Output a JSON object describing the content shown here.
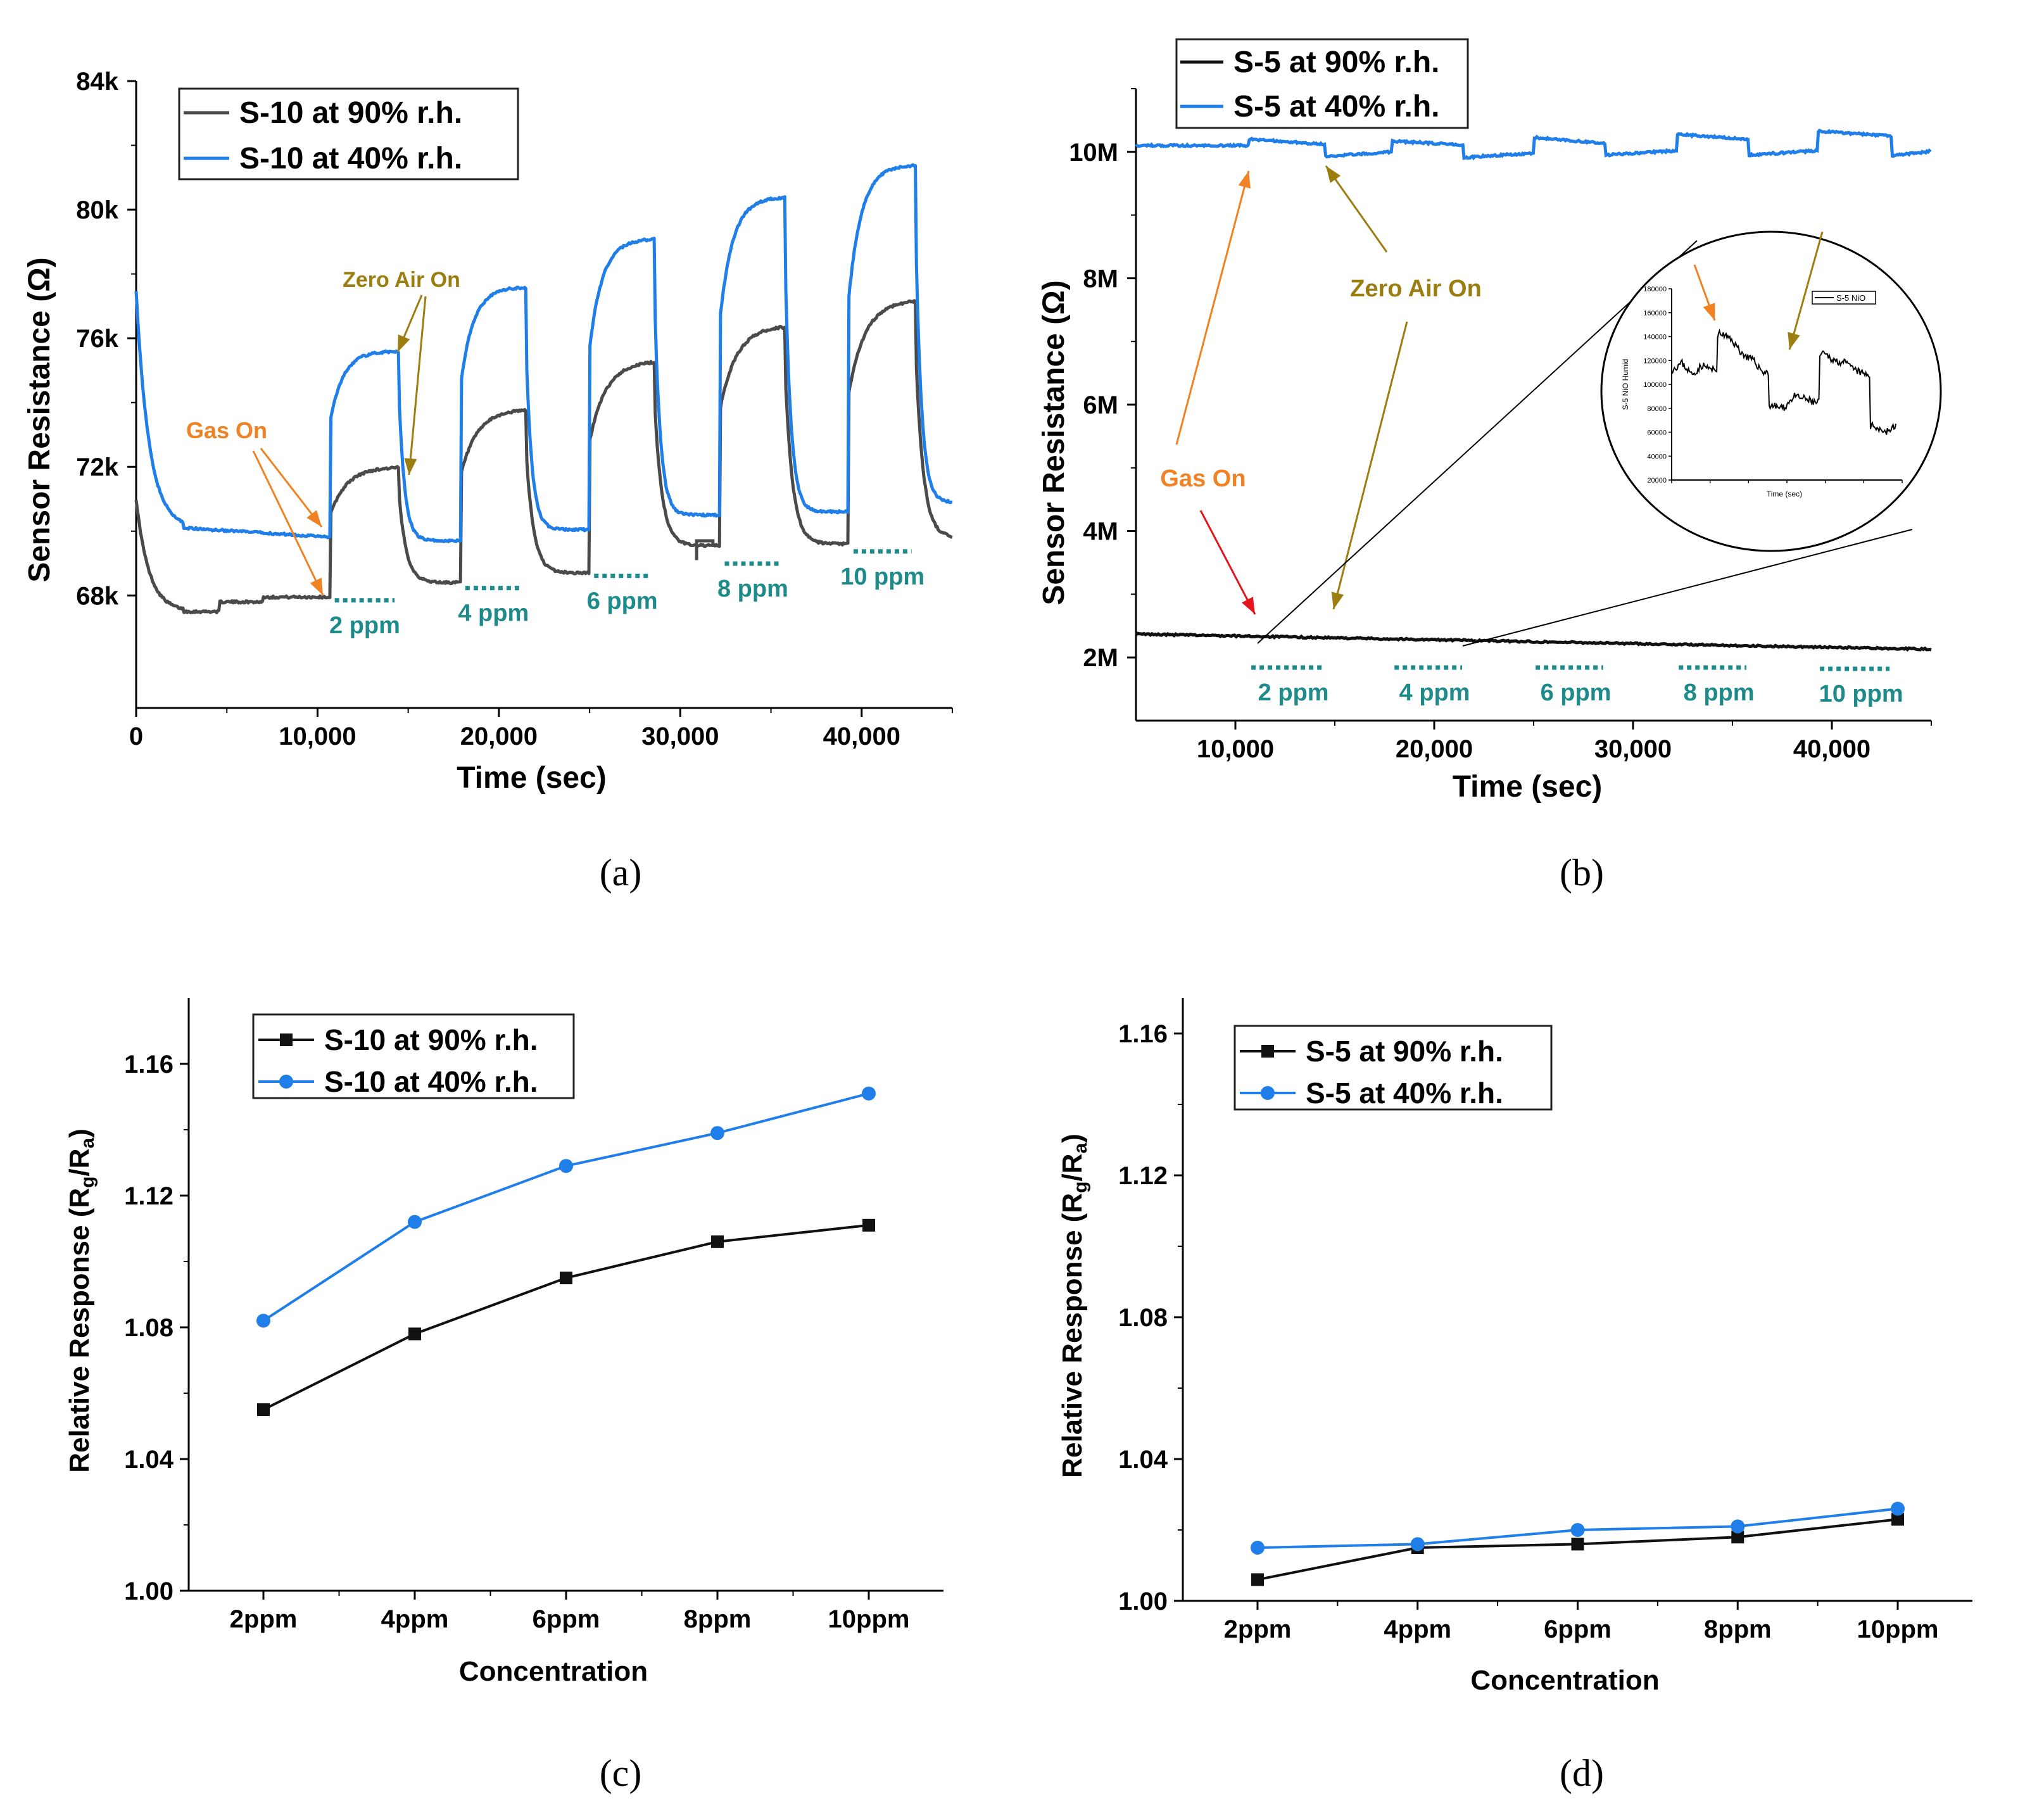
{
  "colors": {
    "blue": "#1f7ee8",
    "dark": "#4a4a4a",
    "black": "#111111",
    "orange": "#f08224",
    "olive": "#9b7d10",
    "red": "#e5151d",
    "teal": "#1e8a8a"
  },
  "chart_data": [
    {
      "id": "a",
      "type": "line",
      "panel_label": "(a)",
      "xlabel": "Time (sec)",
      "ylabel": "Sensor Resistance (Ω)",
      "xlim": [
        0,
        45000
      ],
      "ylim": [
        64500,
        84000
      ],
      "x_ticks": [
        0,
        10000,
        20000,
        30000,
        40000
      ],
      "x_tick_labels": [
        "0",
        "10,000",
        "20,000",
        "30,000",
        "40,000"
      ],
      "y_ticks": [
        68000,
        72000,
        76000,
        80000,
        84000
      ],
      "y_tick_labels": [
        "68k",
        "72k",
        "76k",
        "80k",
        "84k"
      ],
      "legend": [
        "S-10 at 90% r.h.",
        "S-10 at 40% r.h."
      ],
      "series": [
        {
          "name": "S-10 at 90% r.h.",
          "color": "#4a4a4a",
          "baseline": [
            68050,
            68400,
            68700,
            69550,
            69600,
            69800
          ],
          "initial": 71000,
          "initial_floor": 67500,
          "peaks": [
            72000,
            73800,
            75300,
            76400,
            77200
          ]
        },
        {
          "name": "S-10 at 40% r.h.",
          "color": "#1f7ee8",
          "baseline": [
            69800,
            69700,
            70050,
            70500,
            70600,
            70900
          ],
          "initial": 77500,
          "initial_floor": 70100,
          "peaks": [
            75600,
            77600,
            79100,
            80400,
            81400
          ]
        }
      ],
      "gas_pulses": [
        {
          "start": 10700,
          "end": 14500,
          "label": "2 ppm"
        },
        {
          "start": 17900,
          "end": 21500,
          "label": "4 ppm"
        },
        {
          "start": 25000,
          "end": 28600,
          "label": "6 ppm"
        },
        {
          "start": 32200,
          "end": 35800,
          "label": "8 ppm"
        },
        {
          "start": 39300,
          "end": 43000,
          "label": "10 ppm"
        }
      ],
      "annotations": {
        "gas_on": "Gas On",
        "zero_air_on": "Zero Air On"
      }
    },
    {
      "id": "b",
      "type": "line",
      "panel_label": "(b)",
      "xlabel": "Time (sec)",
      "ylabel": "Sensor Resistance (Ω)",
      "xlim": [
        5000,
        45000
      ],
      "ylim": [
        1000000,
        11000000
      ],
      "x_ticks": [
        10000,
        20000,
        30000,
        40000
      ],
      "x_tick_labels": [
        "10,000",
        "20,000",
        "30,000",
        "40,000"
      ],
      "y_ticks": [
        2000000,
        4000000,
        6000000,
        8000000,
        10000000
      ],
      "y_tick_labels": [
        "2M",
        "4M",
        "6M",
        "8M",
        "10M"
      ],
      "legend": [
        "S-5 at 90% r.h.",
        "S-5 at 40% r.h."
      ],
      "series": [
        {
          "name": "S-5 at 90% r.h.",
          "color": "#111111",
          "start": 2370000,
          "end": 2130000
        },
        {
          "name": "S-5 at 40% r.h.",
          "color": "#1f7ee8",
          "baseline": [
            10100000,
            9970000,
            9950000,
            9990000,
            9990000,
            9980000
          ],
          "peaks": [
            10200000,
            10170000,
            10230000,
            10280000,
            10330000
          ],
          "peak_decay": [
            10120000,
            10110000,
            10130000,
            10200000,
            10250000
          ]
        }
      ],
      "gas_pulses": [
        {
          "start": 10700,
          "end": 14500,
          "label": "2 ppm"
        },
        {
          "start": 17900,
          "end": 21500,
          "label": "4 ppm"
        },
        {
          "start": 25000,
          "end": 28600,
          "label": "6 ppm"
        },
        {
          "start": 32200,
          "end": 35800,
          "label": "8 ppm"
        },
        {
          "start": 39300,
          "end": 43000,
          "label": "10 ppm"
        }
      ],
      "annotations": {
        "gas_on": "Gas On",
        "zero_air_on": "Zero Air On"
      },
      "inset": {
        "legend": "S-5 NiO",
        "xlabel": "Time (sec)",
        "ylabel": "S-5 NiO Humid",
        "ylim": [
          20000,
          180000
        ],
        "y_ticks": [
          20000,
          40000,
          60000,
          80000,
          100000,
          120000,
          140000,
          160000,
          180000
        ],
        "y_tick_labels": [
          "20000",
          "40000",
          "60000",
          "80000",
          "100000",
          "120000",
          "140000",
          "160000",
          "180000"
        ],
        "values": [
          112000,
          118000,
          108000,
          116000,
          112000,
          142000,
          136000,
          125000,
          120000,
          110000,
          82000,
          80000,
          90000,
          88000,
          85000,
          125000,
          120000,
          118000,
          112000,
          108000,
          65000,
          60000,
          65000
        ]
      }
    },
    {
      "id": "c",
      "type": "line",
      "panel_label": "(c)",
      "xlabel": "Concentration",
      "ylabel": "Relative Response (Rg/Ra)",
      "categories": [
        "2ppm",
        "4ppm",
        "6ppm",
        "8ppm",
        "10ppm"
      ],
      "ylim": [
        1.0,
        1.18
      ],
      "y_ticks": [
        1.0,
        1.04,
        1.08,
        1.12,
        1.16
      ],
      "y_tick_labels": [
        "1.00",
        "1.04",
        "1.08",
        "1.12",
        "1.16"
      ],
      "series": [
        {
          "name": "S-10 at 90% r.h.",
          "marker": "square",
          "color": "#111111",
          "values": [
            1.055,
            1.078,
            1.095,
            1.106,
            1.111
          ]
        },
        {
          "name": "S-10 at 40% r.h.",
          "marker": "circle",
          "color": "#1f7ee8",
          "values": [
            1.082,
            1.112,
            1.129,
            1.139,
            1.151
          ]
        }
      ]
    },
    {
      "id": "d",
      "type": "line",
      "panel_label": "(d)",
      "xlabel": "Concentration",
      "ylabel": "Relative Response (Rg/Ra)",
      "categories": [
        "2ppm",
        "4ppm",
        "6ppm",
        "8ppm",
        "10ppm"
      ],
      "ylim": [
        1.0,
        1.17
      ],
      "y_ticks": [
        1.0,
        1.04,
        1.08,
        1.12,
        1.16
      ],
      "y_tick_labels": [
        "1.00",
        "1.04",
        "1.08",
        "1.12",
        "1.16"
      ],
      "series": [
        {
          "name": "S-5 at 90% r.h.",
          "marker": "square",
          "color": "#111111",
          "values": [
            1.006,
            1.015,
            1.016,
            1.018,
            1.023
          ]
        },
        {
          "name": "S-5 at 40% r.h.",
          "marker": "circle",
          "color": "#1f7ee8",
          "values": [
            1.015,
            1.016,
            1.02,
            1.021,
            1.026
          ]
        }
      ]
    }
  ]
}
